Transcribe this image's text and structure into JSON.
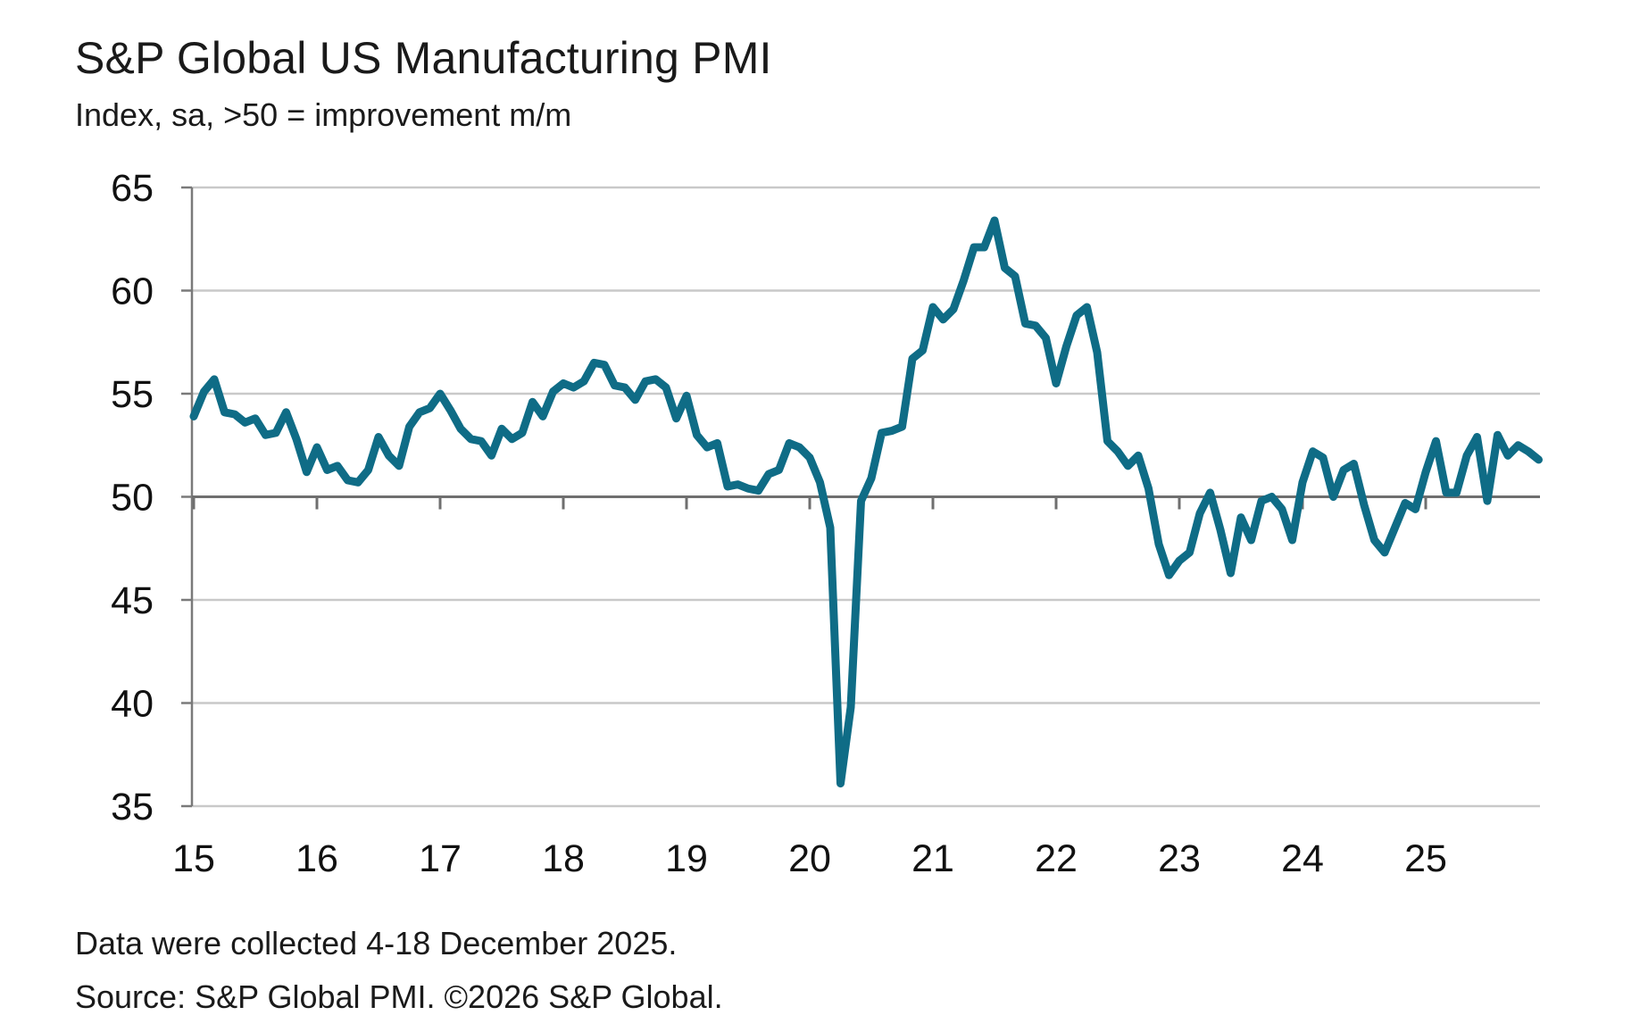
{
  "chart_data": {
    "type": "line",
    "title": "S&P Global US Manufacturing PMI",
    "subtitle": "Index, sa, >50 = improvement m/m",
    "xlabel": "",
    "ylabel": "",
    "ylim": [
      35,
      65
    ],
    "yticks": [
      "65",
      "60",
      "55",
      "50",
      "45",
      "40",
      "35"
    ],
    "xticks": [
      "15",
      "16",
      "17",
      "18",
      "19",
      "20",
      "21",
      "22",
      "23",
      "24",
      "25"
    ],
    "reference_line": 50,
    "grid": true,
    "line_color": "#0f6c86",
    "grid_color": "#c9c9c9",
    "start": "2015-01",
    "end": "2025-12",
    "series": [
      {
        "values": [
          53.9,
          55.1,
          55.7,
          54.1,
          54.0,
          53.6,
          53.8,
          53.0,
          53.1,
          54.1,
          52.8,
          51.2,
          52.4,
          51.3,
          51.5,
          50.8,
          50.7,
          51.3,
          52.9,
          52.0,
          51.5,
          53.4,
          54.1,
          54.3,
          55.0,
          54.2,
          53.3,
          52.8,
          52.7,
          52.0,
          53.3,
          52.8,
          53.1,
          54.6,
          53.9,
          55.1,
          55.5,
          55.3,
          55.6,
          56.5,
          56.4,
          55.4,
          55.3,
          54.7,
          55.6,
          55.7,
          55.3,
          53.8,
          54.9,
          53.0,
          52.4,
          52.6,
          50.5,
          50.6,
          50.4,
          50.3,
          51.1,
          51.3,
          52.6,
          52.4,
          51.9,
          50.7,
          48.5,
          36.1,
          39.8,
          49.8,
          50.9,
          53.1,
          53.2,
          53.4,
          56.7,
          57.1,
          59.2,
          58.6,
          59.1,
          60.5,
          62.1,
          62.1,
          63.4,
          61.1,
          60.7,
          58.4,
          58.3,
          57.7,
          55.5,
          57.3,
          58.8,
          59.2,
          57.0,
          52.7,
          52.2,
          51.5,
          52.0,
          50.4,
          47.7,
          46.2,
          46.9,
          47.3,
          49.2,
          50.2,
          48.4,
          46.3,
          49.0,
          47.9,
          49.8,
          50.0,
          49.4,
          47.9,
          50.7,
          52.2,
          51.9,
          50.0,
          51.3,
          51.6,
          49.6,
          47.9,
          47.3,
          48.5,
          49.7,
          49.4,
          51.2,
          52.7,
          50.2,
          50.2,
          52.0,
          52.9,
          49.8,
          53.0,
          52.0,
          52.5,
          52.2,
          51.8
        ]
      }
    ]
  },
  "footer": {
    "note": "Data were collected 4-18 December 2025.",
    "source": "Source: S&P Global PMI. ©2026 S&P Global."
  }
}
